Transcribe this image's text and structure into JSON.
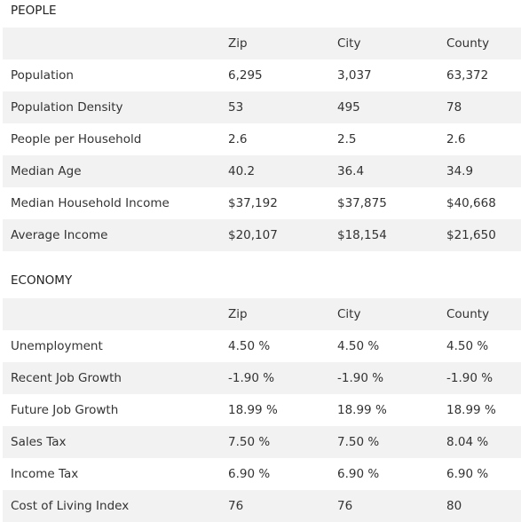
{
  "sections": [
    {
      "title": "PEOPLE",
      "columns": [
        "Zip",
        "City",
        "County"
      ],
      "rows": [
        [
          "Population",
          "6,295",
          "3,037",
          "63,372"
        ],
        [
          "Population Density",
          "53",
          "495",
          "78"
        ],
        [
          "People per Household",
          "2.6",
          "2.5",
          "2.6"
        ],
        [
          "Median Age",
          "40.2",
          "36.4",
          "34.9"
        ],
        [
          "Median Household Income",
          "$37,192",
          "$37,875",
          "$40,668"
        ],
        [
          "Average Income",
          "$20,107",
          "$18,154",
          "$21,650"
        ]
      ]
    },
    {
      "title": "ECONOMY",
      "columns": [
        "Zip",
        "City",
        "County"
      ],
      "rows": [
        [
          "Unemployment",
          "4.50 %",
          "4.50 %",
          "4.50 %"
        ],
        [
          "Recent Job Growth",
          "-1.90 %",
          "-1.90 %",
          "-1.90 %"
        ],
        [
          "Future Job Growth",
          "18.99 %",
          "18.99 %",
          "18.99 %"
        ],
        [
          "Sales Tax",
          "7.50 %",
          "7.50 %",
          "8.04 %"
        ],
        [
          "Income Tax",
          "6.90 %",
          "6.90 %",
          "6.90 %"
        ],
        [
          "Cost of Living Index",
          "76",
          "76",
          "80"
        ]
      ]
    }
  ]
}
